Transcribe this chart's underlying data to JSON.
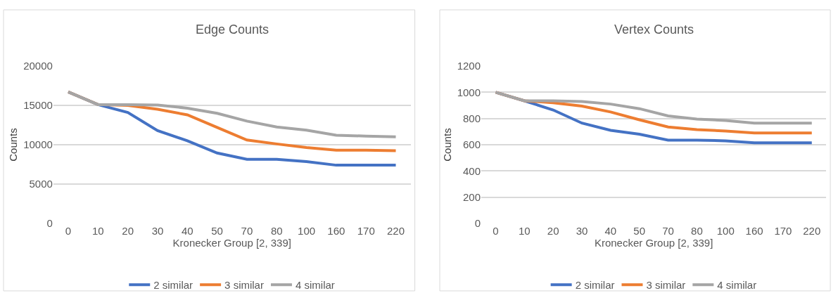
{
  "chart_data": [
    {
      "type": "line",
      "title": "Edge Counts",
      "xlabel": "Kronecker Group [2, 339]",
      "ylabel": "Counts",
      "categories": [
        "0",
        "10",
        "20",
        "30",
        "40",
        "50",
        "70",
        "80",
        "100",
        "160",
        "170",
        "220"
      ],
      "ylim": [
        0,
        20000
      ],
      "yticks": [
        0,
        5000,
        10000,
        15000,
        20000
      ],
      "grid": "y",
      "legend": "bottom",
      "series": [
        {
          "name": "2 similar",
          "color": "#4472c4",
          "values": [
            16700,
            15100,
            14100,
            11800,
            10500,
            8950,
            8150,
            8150,
            7850,
            7400,
            7400,
            7400
          ]
        },
        {
          "name": "3 similar",
          "color": "#ed7d31",
          "values": [
            16700,
            15100,
            15000,
            14500,
            13800,
            12200,
            10600,
            10100,
            9650,
            9300,
            9300,
            9250
          ]
        },
        {
          "name": "4 similar",
          "color": "#a5a5a5",
          "values": [
            16700,
            15100,
            15100,
            15050,
            14650,
            14000,
            13000,
            12250,
            11850,
            11200,
            11100,
            11000
          ]
        }
      ]
    },
    {
      "type": "line",
      "title": "Vertex Counts",
      "xlabel": "Kronecker Group [2, 339]",
      "ylabel": "Counts",
      "categories": [
        "0",
        "10",
        "20",
        "30",
        "40",
        "50",
        "70",
        "80",
        "100",
        "160",
        "170",
        "220"
      ],
      "ylim": [
        0,
        1200
      ],
      "yticks": [
        0,
        200,
        400,
        600,
        800,
        1000,
        1200
      ],
      "grid": "y",
      "legend": "bottom",
      "series": [
        {
          "name": "2 similar",
          "color": "#4472c4",
          "values": [
            1000,
            935,
            865,
            765,
            710,
            680,
            635,
            635,
            630,
            615,
            615,
            615
          ]
        },
        {
          "name": "3 similar",
          "color": "#ed7d31",
          "values": [
            1000,
            935,
            920,
            895,
            850,
            790,
            735,
            715,
            705,
            690,
            690,
            690
          ]
        },
        {
          "name": "4 similar",
          "color": "#a5a5a5",
          "values": [
            1000,
            935,
            935,
            930,
            910,
            875,
            820,
            795,
            785,
            765,
            765,
            765
          ]
        }
      ]
    }
  ]
}
